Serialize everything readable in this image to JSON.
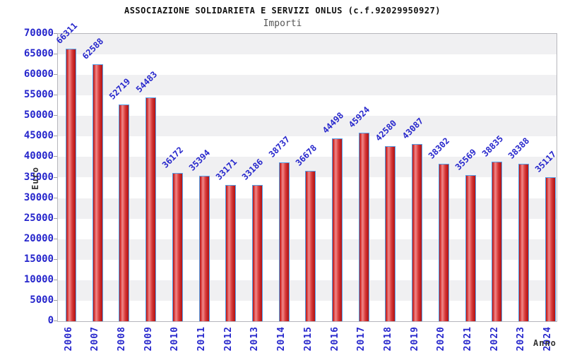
{
  "header": {
    "title": "ASSOCIAZIONE SOLIDARIETA E SERVIZI ONLUS (c.f.92029950927)",
    "subtitle": "Importi"
  },
  "chart_data": {
    "type": "bar",
    "title": "ASSOCIAZIONE SOLIDARIETA E SERVIZI ONLUS (c.f.92029950927)",
    "subtitle": "Importi",
    "xlabel": "Anno",
    "ylabel": "Euro",
    "categories": [
      "2006",
      "2007",
      "2008",
      "2009",
      "2010",
      "2011",
      "2012",
      "2013",
      "2014",
      "2015",
      "2016",
      "2017",
      "2018",
      "2019",
      "2020",
      "2021",
      "2022",
      "2023",
      "2024"
    ],
    "values": [
      66311,
      62588,
      52719,
      54483,
      36172,
      35394,
      33171,
      33186,
      38737,
      36678,
      44498,
      45924,
      42580,
      43087,
      38302,
      35569,
      38835,
      38388,
      35117
    ],
    "ylim": [
      0,
      70000
    ],
    "ytick_step": 5000,
    "grid": "horizontal-alternating-bands",
    "legend": "none",
    "colors": {
      "bar_fill_dark": "#b31414",
      "bar_fill_light": "#ef8888",
      "bar_border": "#55a0e8",
      "tick_label": "#2626cc",
      "value_label": "#2626cc",
      "band_gray": "#f0f0f2",
      "band_white": "#ffffff",
      "axis_title": "#333333",
      "frame": "#b6b6bc",
      "title": "#111111",
      "subtitle": "#555555"
    }
  }
}
